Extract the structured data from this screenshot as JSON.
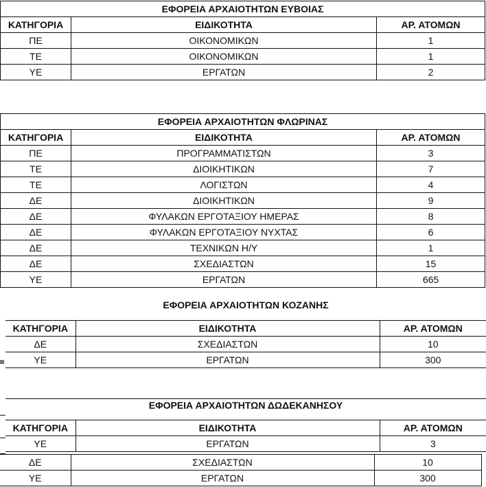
{
  "headers": {
    "category": "ΚΑΤΗΓΟΡΙΑ",
    "specialty": "ΕΙΔΙΚΟΤΗΤΑ",
    "count": "ΑΡ. ΑΤΟΜΩΝ"
  },
  "tables": [
    {
      "title": "ΕΦΟΡΕΙΑ ΑΡΧΑΙΟΤΗΤΩΝ ΕΥΒΟΙΑΣ",
      "rows": [
        [
          "ΠΕ",
          "ΟΙΚΟΝΟΜΙΚΩΝ",
          "1"
        ],
        [
          "ΤΕ",
          "ΟΙΚΟΝΟΜΙΚΩΝ",
          "1"
        ],
        [
          "ΥΕ",
          "ΕΡΓΑΤΩΝ",
          "2"
        ]
      ]
    },
    {
      "title": "ΕΦΟΡΕΙΑ ΑΡΧΑΙΟΤΗΤΩΝ ΦΛΩΡΙΝΑΣ",
      "rows": [
        [
          "ΠΕ",
          "ΠΡΟΓΡΑΜΜΑΤΙΣΤΩΝ",
          "3"
        ],
        [
          "ΤΕ",
          "ΔΙΟΙΚΗΤΙΚΩΝ",
          "7"
        ],
        [
          "ΤΕ",
          "ΛΟΓΙΣΤΩΝ",
          "4"
        ],
        [
          "ΔΕ",
          "ΔΙΟΙΚΗΤΙΚΩΝ",
          "9"
        ],
        [
          "ΔΕ",
          "ΦΥΛΑΚΩΝ ΕΡΓΟΤΑΞΙΟΥ ΗΜΕΡΑΣ",
          "8"
        ],
        [
          "ΔΕ",
          "ΦΥΛΑΚΩΝ ΕΡΓΟΤΑΞΙΟΥ ΝΥΧΤΑΣ",
          "6"
        ],
        [
          "ΔΕ",
          "ΤΕΧΝΙΚΩΝ Η/Υ",
          "1"
        ],
        [
          "ΔΕ",
          "ΣΧΕΔΙΑΣΤΩΝ",
          "15"
        ],
        [
          "ΥΕ",
          "ΕΡΓΑΤΩΝ",
          "665"
        ]
      ]
    },
    {
      "title": "ΕΦΟΡΕΙΑ ΑΡΧΑΙΟΤΗΤΩΝ ΚΟΖΑΝΗΣ",
      "rows": [
        [
          "ΔΕ",
          "ΣΧΕΔΙΑΣΤΩΝ",
          "10"
        ],
        [
          "ΥΕ",
          "ΕΡΓΑΤΩΝ",
          "300"
        ]
      ]
    },
    {
      "title": "ΕΦΟΡΕΙΑ ΑΡΧΑΙΟΤΗΤΩΝ ΔΩΔΕΚΑΝΗΣΟΥ",
      "rows": [
        [
          "ΥΕ",
          "ΕΡΓΑΤΩΝ",
          "3"
        ],
        [
          "ΔΕ",
          "ΣΧΕΔΙΑΣΤΩΝ",
          "10"
        ],
        [
          "ΥΕ",
          "ΕΡΓΑΤΩΝ",
          "300"
        ]
      ]
    }
  ]
}
